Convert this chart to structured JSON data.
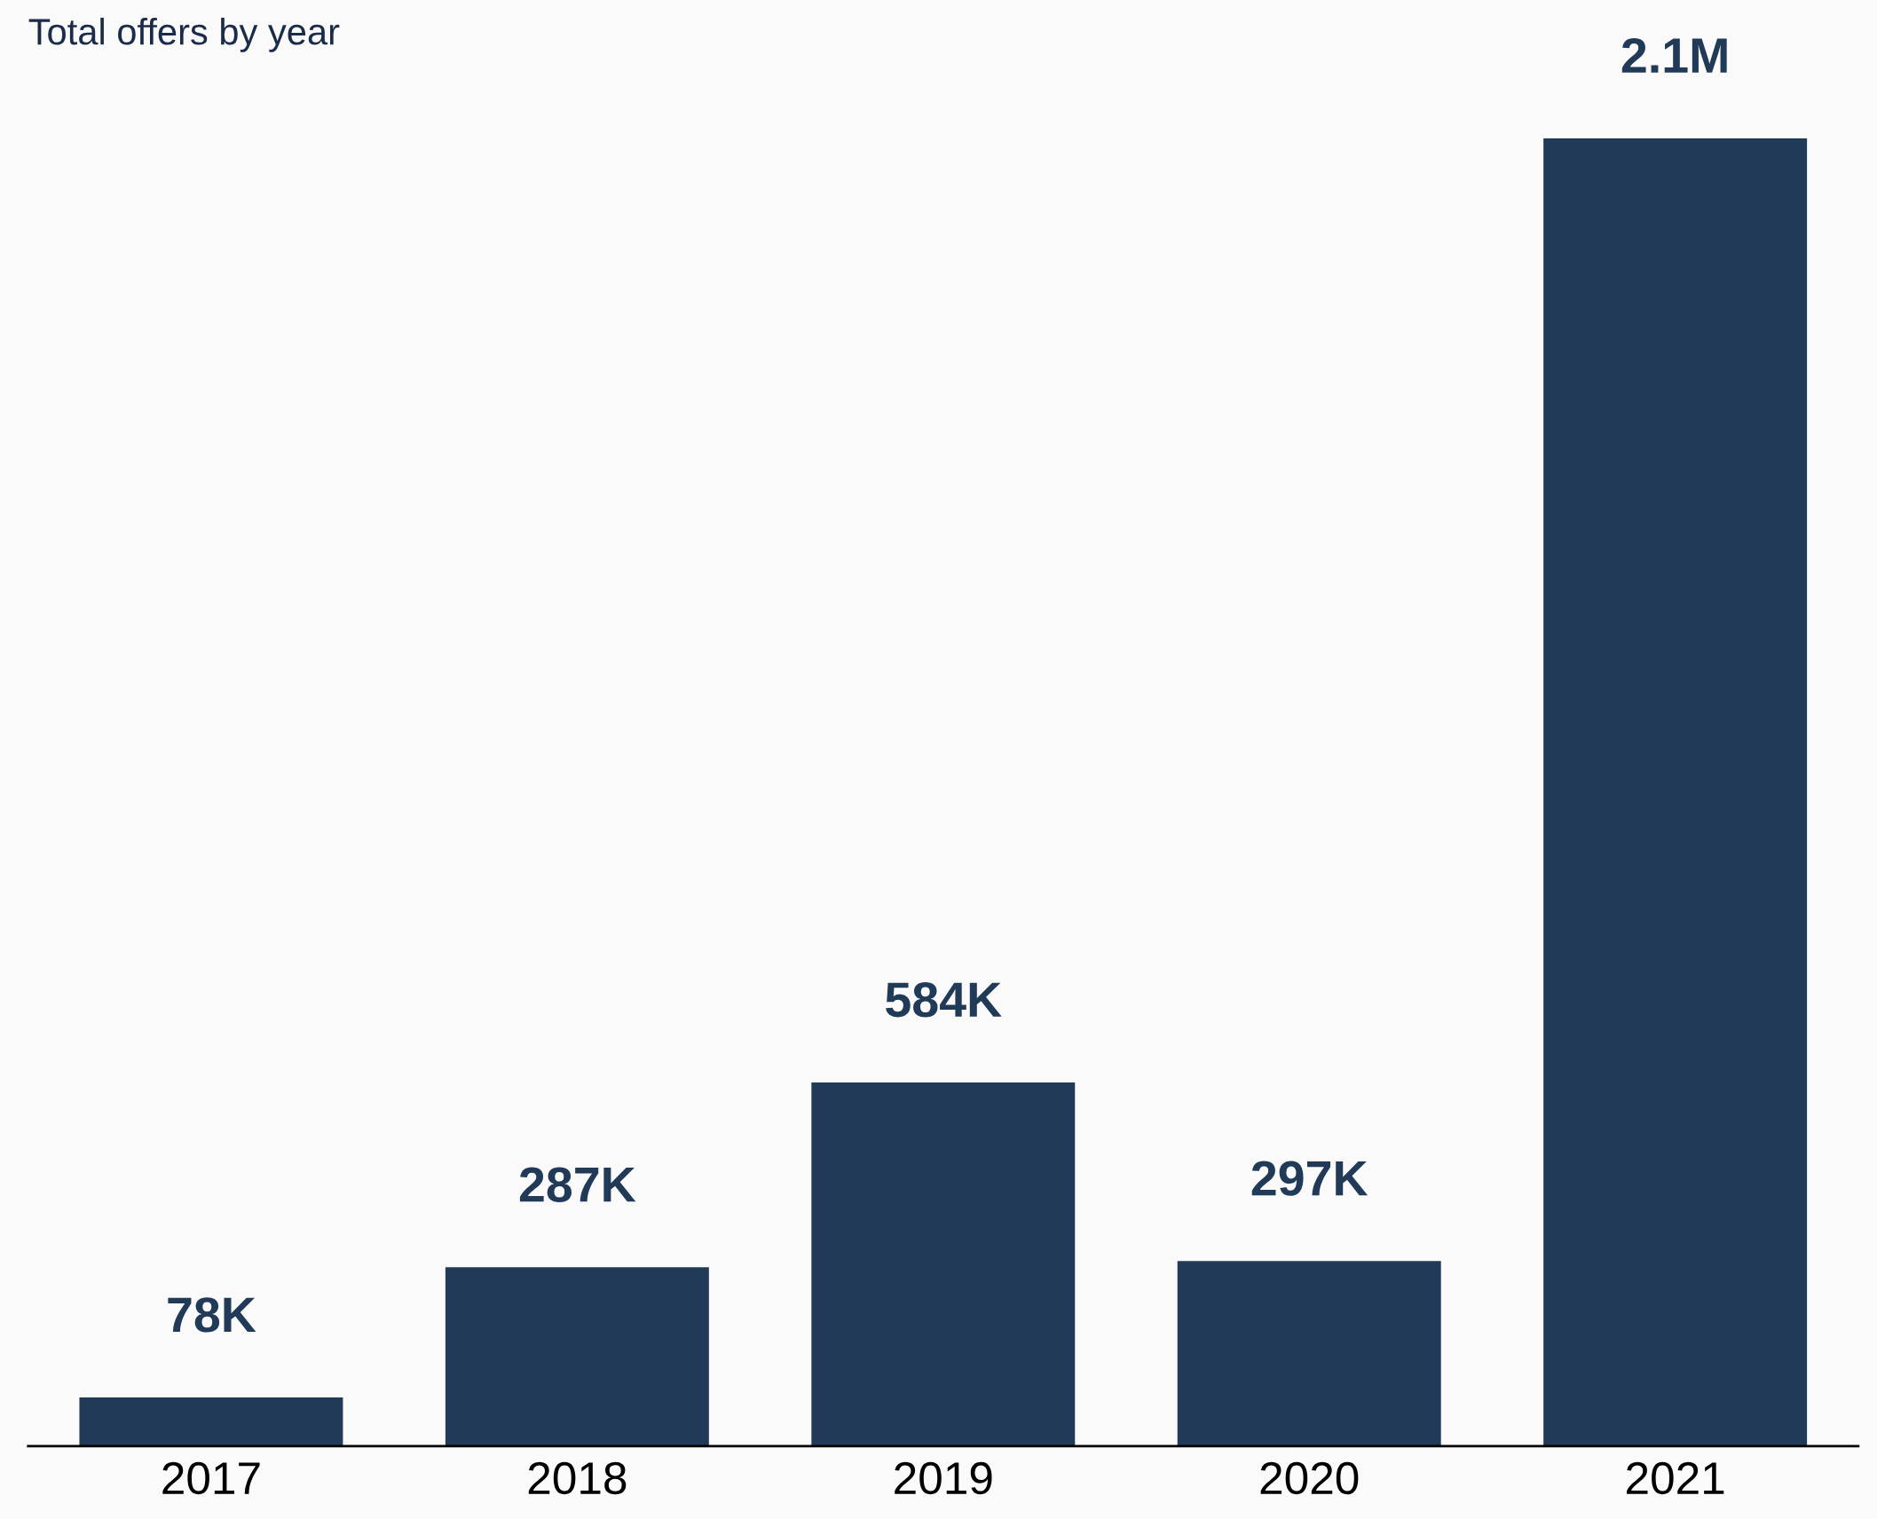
{
  "chart_data": {
    "type": "bar",
    "title": "Total offers by year",
    "categories": [
      "2017",
      "2018",
      "2019",
      "2020",
      "2021"
    ],
    "values": [
      78000,
      287000,
      584000,
      297000,
      2100000
    ],
    "value_labels": [
      "78K",
      "287K",
      "584K",
      "297K",
      "2.1M"
    ],
    "color": "#213a57",
    "grid": false,
    "legend": false
  }
}
